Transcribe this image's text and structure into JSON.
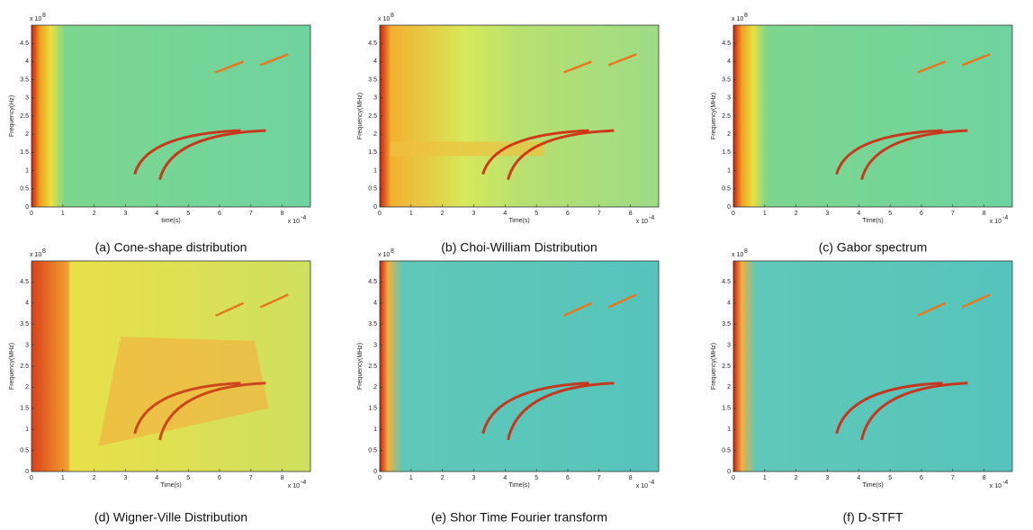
{
  "chart_data": [
    {
      "type": "heatmap",
      "caption": "(a) Cone-shape distribution",
      "xlabel": "time(s)",
      "ylabel": "Frequency(Hz)",
      "x_scale": {
        "base": "x 10",
        "exponent": "-4"
      },
      "y_scale": {
        "base": "x 10",
        "exponent": "8"
      },
      "xlim": [
        0,
        8.9
      ],
      "ylim": [
        0,
        5
      ],
      "xticks": [
        0,
        1,
        2,
        3,
        4,
        5,
        6,
        7,
        8
      ],
      "yticks": [
        0,
        0.5,
        1,
        1.5,
        2,
        2.5,
        3,
        3.5,
        4,
        4.5
      ]
    },
    {
      "type": "heatmap",
      "caption": "(b) Choi-William Distribution",
      "xlabel": "Time(s)",
      "ylabel": "Frequency(MHz)",
      "x_scale": {
        "base": "x 10",
        "exponent": "-4"
      },
      "y_scale": {
        "base": "x 10",
        "exponent": "8"
      },
      "xlim": [
        0,
        8.9
      ],
      "ylim": [
        0,
        5
      ],
      "xticks": [
        0,
        1,
        2,
        3,
        4,
        5,
        6,
        7,
        8
      ],
      "yticks": [
        0,
        0.5,
        1,
        1.5,
        2,
        2.5,
        3,
        3.5,
        4,
        4.5
      ]
    },
    {
      "type": "heatmap",
      "caption": "(c) Gabor spectrum",
      "xlabel": "Time(s)",
      "ylabel": "Frequency(MHz)",
      "x_scale": {
        "base": "x 10",
        "exponent": "-4"
      },
      "y_scale": {
        "base": "x 10",
        "exponent": "8"
      },
      "xlim": [
        0,
        8.9
      ],
      "ylim": [
        0,
        5
      ],
      "xticks": [
        0,
        1,
        2,
        3,
        4,
        5,
        6,
        7,
        8
      ],
      "yticks": [
        0,
        0.5,
        1,
        1.5,
        2,
        2.5,
        3,
        3.5,
        4,
        4.5
      ]
    },
    {
      "type": "heatmap",
      "caption": "(d) Wigner-Ville Distribution",
      "xlabel": "Time(s)",
      "ylabel": "Frequency(MHz)",
      "x_scale": {
        "base": "x 10",
        "exponent": "-4"
      },
      "y_scale": {
        "base": "x 10",
        "exponent": "8"
      },
      "xlim": [
        0,
        8.9
      ],
      "ylim": [
        0,
        5
      ],
      "xticks": [
        0,
        1,
        2,
        3,
        4,
        5,
        6,
        7,
        8
      ],
      "yticks": [
        0,
        0.5,
        1,
        1.5,
        2,
        2.5,
        3,
        3.5,
        4,
        4.5
      ]
    },
    {
      "type": "heatmap",
      "caption": "(e) Shor Time Fourier transform",
      "xlabel": "Time(s)",
      "ylabel": "Frequency(MHz)",
      "x_scale": {
        "base": "x 10",
        "exponent": "-4"
      },
      "y_scale": {
        "base": "x 10",
        "exponent": "8"
      },
      "xlim": [
        0,
        8.9
      ],
      "ylim": [
        0,
        5
      ],
      "xticks": [
        0,
        1,
        2,
        3,
        4,
        5,
        6,
        7,
        8
      ],
      "yticks": [
        0,
        0.5,
        1,
        1.5,
        2,
        2.5,
        3,
        3.5,
        4,
        4.5
      ]
    },
    {
      "type": "heatmap",
      "caption": "(f) D-STFT",
      "xlabel": "Time(s)",
      "ylabel": "Frequency(MHz)",
      "x_scale": {
        "base": "x 10",
        "exponent": "-4"
      },
      "y_scale": {
        "base": "x 10",
        "exponent": "8"
      },
      "xlim": [
        0,
        8.9
      ],
      "ylim": [
        0,
        5
      ],
      "xticks": [
        0,
        1,
        2,
        3,
        4,
        5,
        6,
        7,
        8
      ],
      "yticks": [
        0,
        0.5,
        1,
        1.5,
        2,
        2.5,
        3,
        3.5,
        4,
        4.5
      ]
    }
  ]
}
